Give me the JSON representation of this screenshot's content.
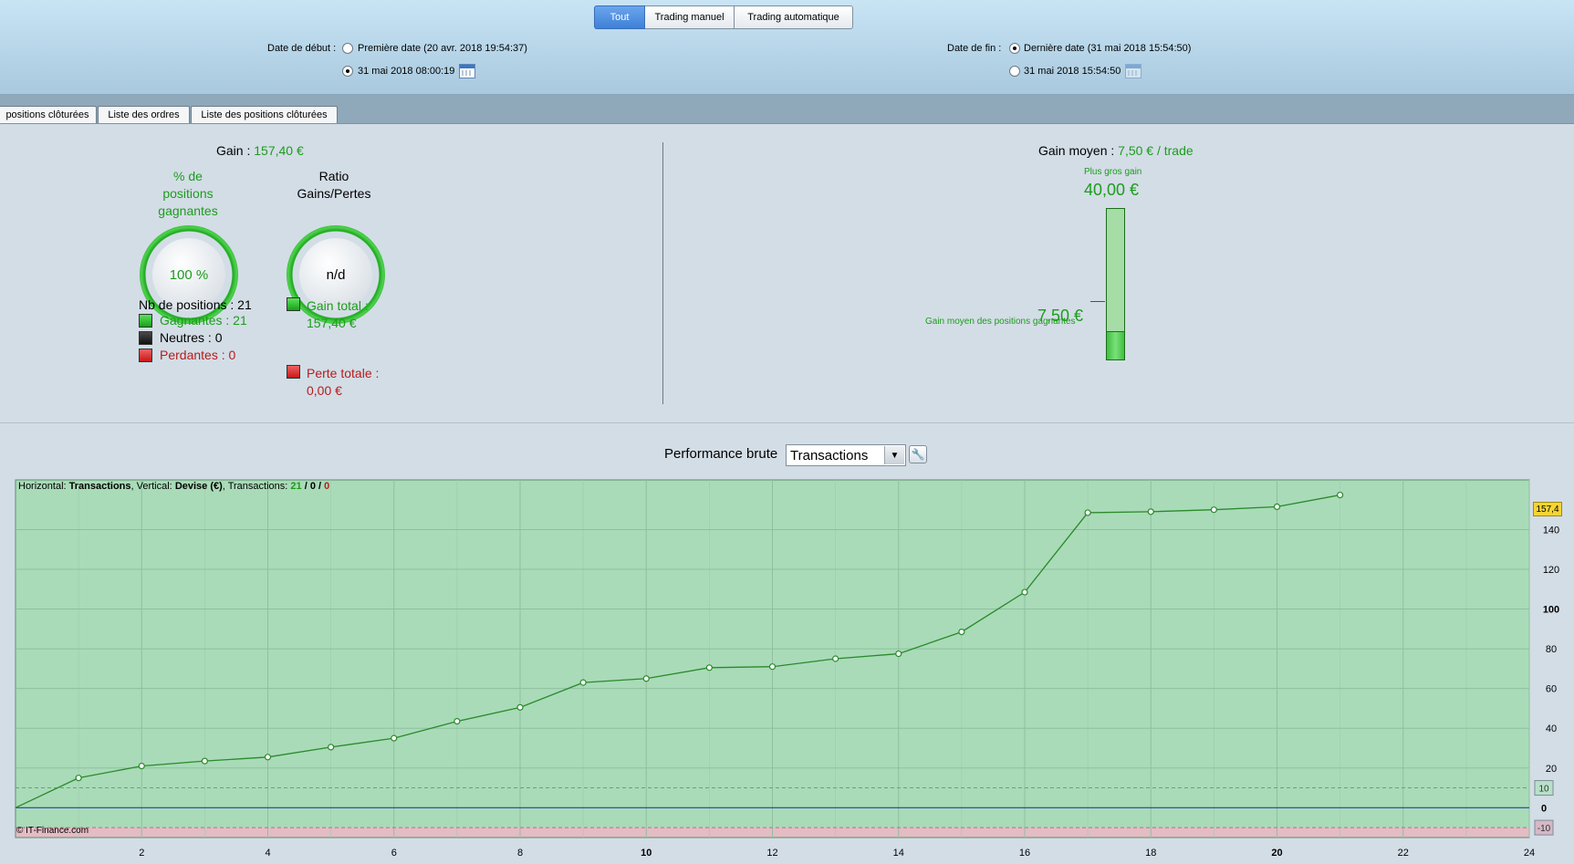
{
  "top_tabs": [
    {
      "label": "Tout",
      "active": true
    },
    {
      "label": "Trading manuel",
      "active": false
    },
    {
      "label": "Trading automatique",
      "active": false
    }
  ],
  "start": {
    "label": "Date de début :",
    "option1": "Première date (20 avr. 2018 19:54:37)",
    "option2": "31 mai 2018 08:00:19"
  },
  "end": {
    "label": "Date de fin :",
    "option1": "Dernière date (31 mai 2018 15:54:50)",
    "option2": "31 mai 2018 15:54:50"
  },
  "sub_tabs": [
    "positions clôturées",
    "Liste des ordres",
    "Liste des positions clôturées"
  ],
  "gain": {
    "label": "Gain :",
    "value": "157,40 €"
  },
  "pct_title": [
    "% de",
    "positions",
    "gagnantes"
  ],
  "pct_value": "100 %",
  "ratio_title": [
    "Ratio",
    "Gains/Pertes"
  ],
  "ratio_value": "n/d",
  "positions": {
    "count_label": "Nb de positions : 21",
    "winning": "Gagnantes : 21",
    "neutral": "Neutres : 0",
    "losing": "Perdantes : 0"
  },
  "totals": {
    "gain_label": "Gain total :",
    "gain_value": "157,40 €",
    "loss_label": "Perte totale :",
    "loss_value": "0,00 €"
  },
  "avg_gain": {
    "label": "Gain moyen :",
    "value": "7,50 € / trade"
  },
  "biggest_gain": {
    "label": "Plus gros gain",
    "value": "40,00 €"
  },
  "avg_winning": {
    "label": "Gain moyen des positions gagnantes",
    "value": "7,50 €"
  },
  "perf": {
    "label": "Performance brute",
    "selected": "Transactions"
  },
  "info": {
    "horizontal_label": "Horizontal:",
    "horizontal_value": "Transactions",
    "vertical_label": ", Vertical:",
    "vertical_value": "Devise (€)",
    "transactions_label": ", Transactions:",
    "win": "21",
    "sep1": "/",
    "neutral": "0",
    "sep2": "/",
    "loss": "0"
  },
  "copyright": "© IT-Finance.com",
  "last_value_label": "157,4",
  "colors": {
    "accent": "#3f80d8",
    "green": "#1c9c1c",
    "red": "#b81c1c",
    "plot_bg": "#a9dbb8",
    "line": "#2a8a2a"
  },
  "chart_data": {
    "type": "line",
    "x": [
      0,
      1,
      2,
      3,
      4,
      5,
      6,
      7,
      8,
      9,
      10,
      11,
      12,
      13,
      14,
      15,
      16,
      17,
      18,
      19,
      20,
      21
    ],
    "series": [
      {
        "values": [
          0,
          15,
          21,
          23.5,
          25.5,
          30.5,
          35,
          43.5,
          50.5,
          63,
          65,
          70.5,
          71,
          75,
          77.5,
          88.5,
          108.5,
          148.5,
          149,
          150,
          151.5,
          157.4
        ]
      }
    ],
    "xlim": [
      0,
      24
    ],
    "ylim": [
      -15,
      165
    ],
    "x_ticks": [
      2,
      4,
      6,
      8,
      10,
      12,
      14,
      16,
      18,
      20,
      22,
      24
    ],
    "y_ticks": [
      20,
      40,
      60,
      80,
      100,
      120,
      140
    ],
    "reference_lines": [
      0,
      10,
      -10
    ],
    "right_markers": [
      "10",
      "0",
      "-10"
    ],
    "grid": true
  }
}
